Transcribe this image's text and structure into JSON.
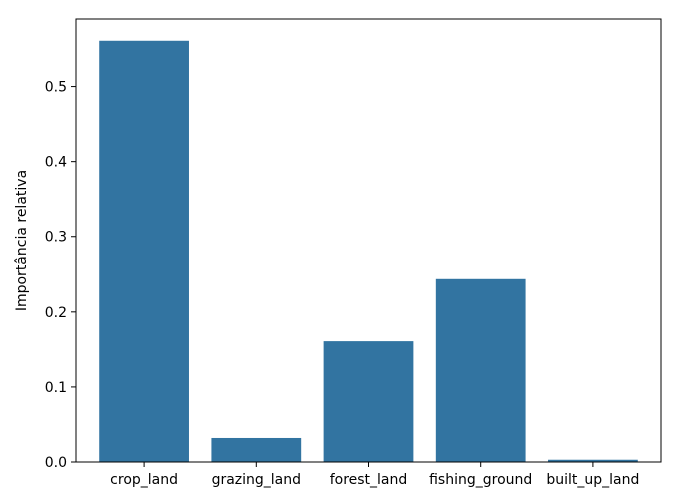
{
  "chart_data": {
    "type": "bar",
    "categories": [
      "crop_land",
      "grazing_land",
      "forest_land",
      "fishing_ground",
      "built_up_land"
    ],
    "values": [
      0.561,
      0.032,
      0.161,
      0.244,
      0.003
    ],
    "title": "",
    "xlabel": "",
    "ylabel": "Importância relativa",
    "ylim": [
      0,
      0.59
    ],
    "yticks": [
      0.0,
      0.1,
      0.2,
      0.3,
      0.4,
      0.5
    ],
    "ytick_labels": [
      "0.0",
      "0.1",
      "0.2",
      "0.3",
      "0.4",
      "0.5"
    ],
    "grid": false,
    "legend": "none",
    "bar_color": "#3274a1"
  }
}
